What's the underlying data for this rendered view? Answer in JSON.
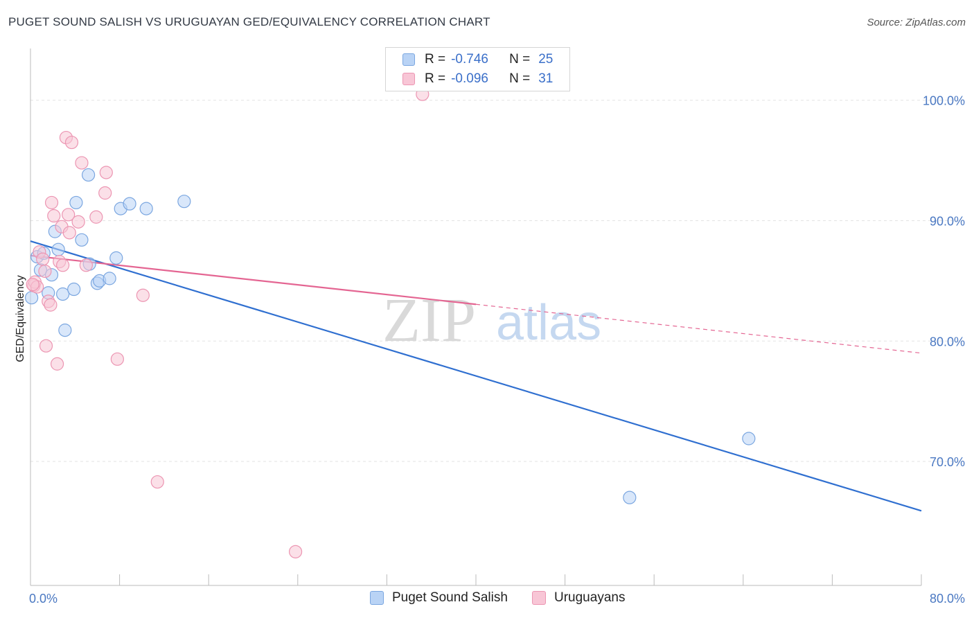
{
  "title": "PUGET SOUND SALISH VS URUGUAYAN GED/EQUIVALENCY CORRELATION CHART",
  "source": "Source: ZipAtlas.com",
  "watermark": {
    "zip": "ZIP",
    "atlas": "atlas"
  },
  "legend": {
    "rows": [
      {
        "r_label": "R =",
        "r_value": "-0.746",
        "n_label": "N =",
        "n_value": "25"
      },
      {
        "r_label": "R =",
        "r_value": "-0.096",
        "n_label": "N =",
        "n_value": "31"
      }
    ]
  },
  "colors": {
    "blue_fill": "#b9d3f5",
    "blue_stroke": "#7aa6e0",
    "blue_line": "#2f6fd0",
    "pink_fill": "#f8c6d6",
    "pink_stroke": "#ec95b2",
    "pink_line": "#e46592",
    "axis_tick": "#4a78c2",
    "grid": "#e3e3e3"
  },
  "chart_data": {
    "type": "scatter",
    "title": "PUGET SOUND SALISH VS URUGUAYAN GED/EQUIVALENCY CORRELATION CHART",
    "xlabel": "",
    "ylabel": "GED/Equivalency",
    "xlim": [
      0,
      80
    ],
    "ylim": [
      59.7,
      104.3
    ],
    "x_tick_labels": [
      {
        "value": 0,
        "label": "0.0%"
      },
      {
        "value": 80,
        "label": "80.0%"
      }
    ],
    "y_tick_labels": [
      {
        "value": 100,
        "label": "100.0%"
      },
      {
        "value": 90,
        "label": "90.0%"
      },
      {
        "value": 80,
        "label": "80.0%"
      },
      {
        "value": 70,
        "label": "70.0%"
      }
    ],
    "x_minor_ticks": [
      8,
      16,
      24,
      32,
      40,
      48,
      56,
      64,
      72,
      80
    ],
    "series": [
      {
        "name": "Puget Sound Salish",
        "color_key": "blue",
        "points": [
          [
            0.1,
            83.6
          ],
          [
            0.6,
            87.0
          ],
          [
            0.9,
            85.9
          ],
          [
            1.2,
            87.3
          ],
          [
            1.6,
            84.0
          ],
          [
            1.9,
            85.5
          ],
          [
            2.2,
            89.1
          ],
          [
            2.5,
            87.6
          ],
          [
            2.9,
            83.9
          ],
          [
            3.1,
            80.9
          ],
          [
            3.9,
            84.3
          ],
          [
            4.1,
            91.5
          ],
          [
            4.6,
            88.4
          ],
          [
            5.3,
            86.4
          ],
          [
            5.2,
            93.8
          ],
          [
            6.0,
            84.8
          ],
          [
            6.2,
            85.0
          ],
          [
            7.1,
            85.2
          ],
          [
            7.7,
            86.9
          ],
          [
            8.1,
            91.0
          ],
          [
            8.9,
            91.4
          ],
          [
            10.4,
            91.0
          ],
          [
            13.8,
            91.6
          ],
          [
            53.8,
            67.0
          ],
          [
            64.5,
            71.9
          ]
        ],
        "trend": {
          "x0": 0,
          "y0": 88.3,
          "x1": 80,
          "y1": 65.9,
          "dashed_from": null
        }
      },
      {
        "name": "Uruguayans",
        "color_key": "pink",
        "points": [
          [
            0.3,
            84.6
          ],
          [
            0.4,
            84.9
          ],
          [
            0.6,
            84.5
          ],
          [
            0.8,
            87.4
          ],
          [
            1.1,
            86.8
          ],
          [
            1.3,
            85.8
          ],
          [
            1.4,
            79.6
          ],
          [
            1.6,
            83.3
          ],
          [
            1.8,
            83.0
          ],
          [
            1.9,
            91.5
          ],
          [
            2.1,
            90.4
          ],
          [
            2.4,
            78.1
          ],
          [
            2.6,
            86.6
          ],
          [
            2.9,
            86.3
          ],
          [
            2.8,
            89.5
          ],
          [
            3.2,
            96.9
          ],
          [
            3.4,
            90.5
          ],
          [
            3.5,
            89.0
          ],
          [
            3.7,
            96.5
          ],
          [
            4.3,
            89.9
          ],
          [
            4.6,
            94.8
          ],
          [
            5.0,
            86.3
          ],
          [
            5.9,
            90.3
          ],
          [
            6.7,
            92.3
          ],
          [
            6.8,
            94.0
          ],
          [
            7.8,
            78.5
          ],
          [
            10.1,
            83.8
          ],
          [
            11.4,
            68.3
          ],
          [
            23.8,
            62.5
          ],
          [
            35.2,
            100.5
          ],
          [
            0.2,
            84.7
          ]
        ],
        "trend": {
          "x0": 0,
          "y0": 87.1,
          "x1": 80,
          "y1": 79.0,
          "dashed_from": 40
        }
      }
    ],
    "legend_position": "top-center",
    "grid": true
  }
}
